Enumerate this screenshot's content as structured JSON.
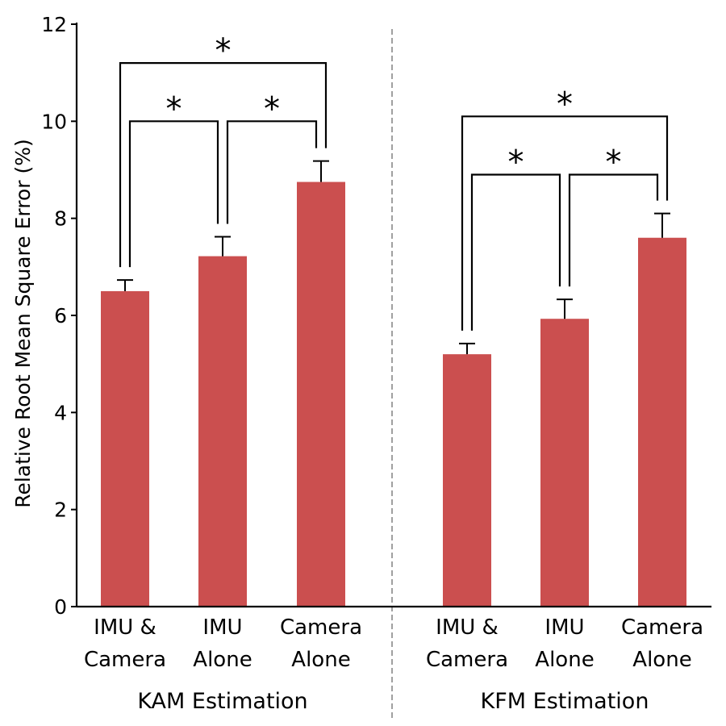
{
  "chart_data": {
    "type": "bar",
    "ylabel": "Relative Root Mean Square Error (%)",
    "ylim": [
      0,
      12
    ],
    "yticks": [
      0,
      2,
      4,
      6,
      8,
      10,
      12
    ],
    "bar_color": "#cb4f4f",
    "groups": [
      {
        "name": "KAM Estimation",
        "categories": [
          [
            "IMU &",
            "Camera"
          ],
          [
            "IMU",
            "Alone"
          ],
          [
            "Camera",
            "Alone"
          ]
        ],
        "values": [
          6.5,
          7.22,
          8.75
        ],
        "errors": [
          0.23,
          0.4,
          0.43
        ]
      },
      {
        "name": "KFM Estimation",
        "categories": [
          [
            "IMU &",
            "Camera"
          ],
          [
            "IMU",
            "Alone"
          ],
          [
            "Camera",
            "Alone"
          ]
        ],
        "values": [
          5.2,
          5.93,
          7.6
        ],
        "errors": [
          0.22,
          0.4,
          0.5
        ]
      }
    ],
    "significance": [
      {
        "group": 0,
        "from": 0,
        "to": 2,
        "y": 11.2,
        "label": "*"
      },
      {
        "group": 0,
        "from": 0,
        "to": 1,
        "y": 10.0,
        "label": "*"
      },
      {
        "group": 0,
        "from": 1,
        "to": 2,
        "y": 10.0,
        "label": "*"
      },
      {
        "group": 1,
        "from": 0,
        "to": 2,
        "y": 10.1,
        "label": "*"
      },
      {
        "group": 1,
        "from": 0,
        "to": 1,
        "y": 8.9,
        "label": "*"
      },
      {
        "group": 1,
        "from": 1,
        "to": 2,
        "y": 8.9,
        "label": "*"
      }
    ],
    "grid": false,
    "legend": "none"
  }
}
